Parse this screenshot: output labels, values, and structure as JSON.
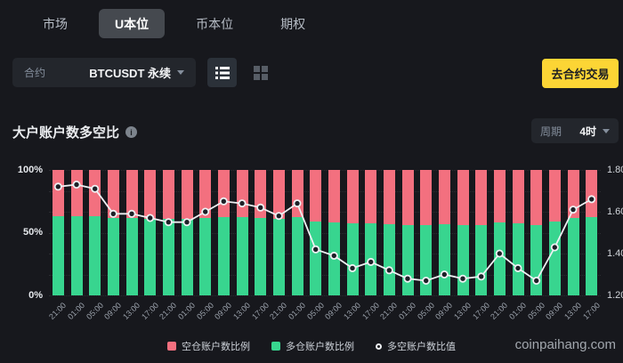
{
  "tabs": {
    "items": [
      {
        "label": "市场",
        "active": false
      },
      {
        "label": "U本位",
        "active": true
      },
      {
        "label": "币本位",
        "active": false
      },
      {
        "label": "期权",
        "active": false
      }
    ]
  },
  "controls": {
    "contract_label": "合约",
    "contract_value": "BTCUSDT 永续",
    "cta_label": "去合约交易"
  },
  "section": {
    "title": "大户账户数多空比",
    "info_icon": "i",
    "period_label": "周期",
    "period_value": "4时"
  },
  "chart_data": {
    "type": "bar",
    "subtype": "stacked-bars-with-line",
    "categories": [
      "21:00",
      "01:00",
      "05:00",
      "09:00",
      "13:00",
      "17:00",
      "21:00",
      "01:00",
      "05:00",
      "09:00",
      "13:00",
      "17:00",
      "21:00",
      "01:00",
      "05:00",
      "09:00",
      "13:00",
      "17:00",
      "21:00",
      "01:00",
      "05:00",
      "09:00",
      "13:00",
      "17:00",
      "21:00",
      "01:00",
      "05:00",
      "09:00",
      "13:00",
      "17:00"
    ],
    "series": [
      {
        "name": "空仓账户数比例",
        "type": "bar",
        "color": "#f3707f",
        "axis": "left",
        "values": [
          36.8,
          36.6,
          36.9,
          38.6,
          38.6,
          38.9,
          39.2,
          39.2,
          38.5,
          37.7,
          37.9,
          38.2,
          38.8,
          37.9,
          41.3,
          41.8,
          42.9,
          42.4,
          43.1,
          43.9,
          44.1,
          43.5,
          43.9,
          43.7,
          41.7,
          42.9,
          44.1,
          41.2,
          38.3,
          37.6
        ]
      },
      {
        "name": "多仓账户数比例",
        "type": "bar",
        "color": "#38d58f",
        "axis": "left",
        "values": [
          63.2,
          63.4,
          63.1,
          61.4,
          61.4,
          61.1,
          60.8,
          60.8,
          61.5,
          62.3,
          62.1,
          61.8,
          61.2,
          62.1,
          58.7,
          58.2,
          57.1,
          57.6,
          56.9,
          56.1,
          55.9,
          56.5,
          56.1,
          56.3,
          58.3,
          57.1,
          55.9,
          58.8,
          61.7,
          62.4
        ]
      },
      {
        "name": "多空账户数比值",
        "type": "line",
        "color": "#eef0f3",
        "marker_fill": "#1d2027",
        "axis": "right",
        "values": [
          1.72,
          1.73,
          1.71,
          1.59,
          1.59,
          1.57,
          1.55,
          1.55,
          1.6,
          1.65,
          1.64,
          1.62,
          1.58,
          1.64,
          1.42,
          1.39,
          1.33,
          1.36,
          1.32,
          1.28,
          1.27,
          1.3,
          1.28,
          1.29,
          1.4,
          1.33,
          1.27,
          1.43,
          1.61,
          1.66
        ]
      }
    ],
    "left_axis": {
      "ticks": [
        "100%",
        "50%",
        "0%"
      ],
      "range": [
        0,
        100
      ]
    },
    "right_axis": {
      "ticks": [
        "1.80",
        "1.60",
        "1.40",
        "1.20"
      ],
      "range": [
        1.2,
        1.8
      ]
    },
    "grid": true,
    "legend_position": "bottom"
  },
  "watermark": "coinpaihang.com",
  "colors": {
    "background": "#17181d",
    "accent_yellow": "#fcd535",
    "bar_short": "#f3707f",
    "bar_long": "#38d58f",
    "line": "#eef0f3"
  }
}
